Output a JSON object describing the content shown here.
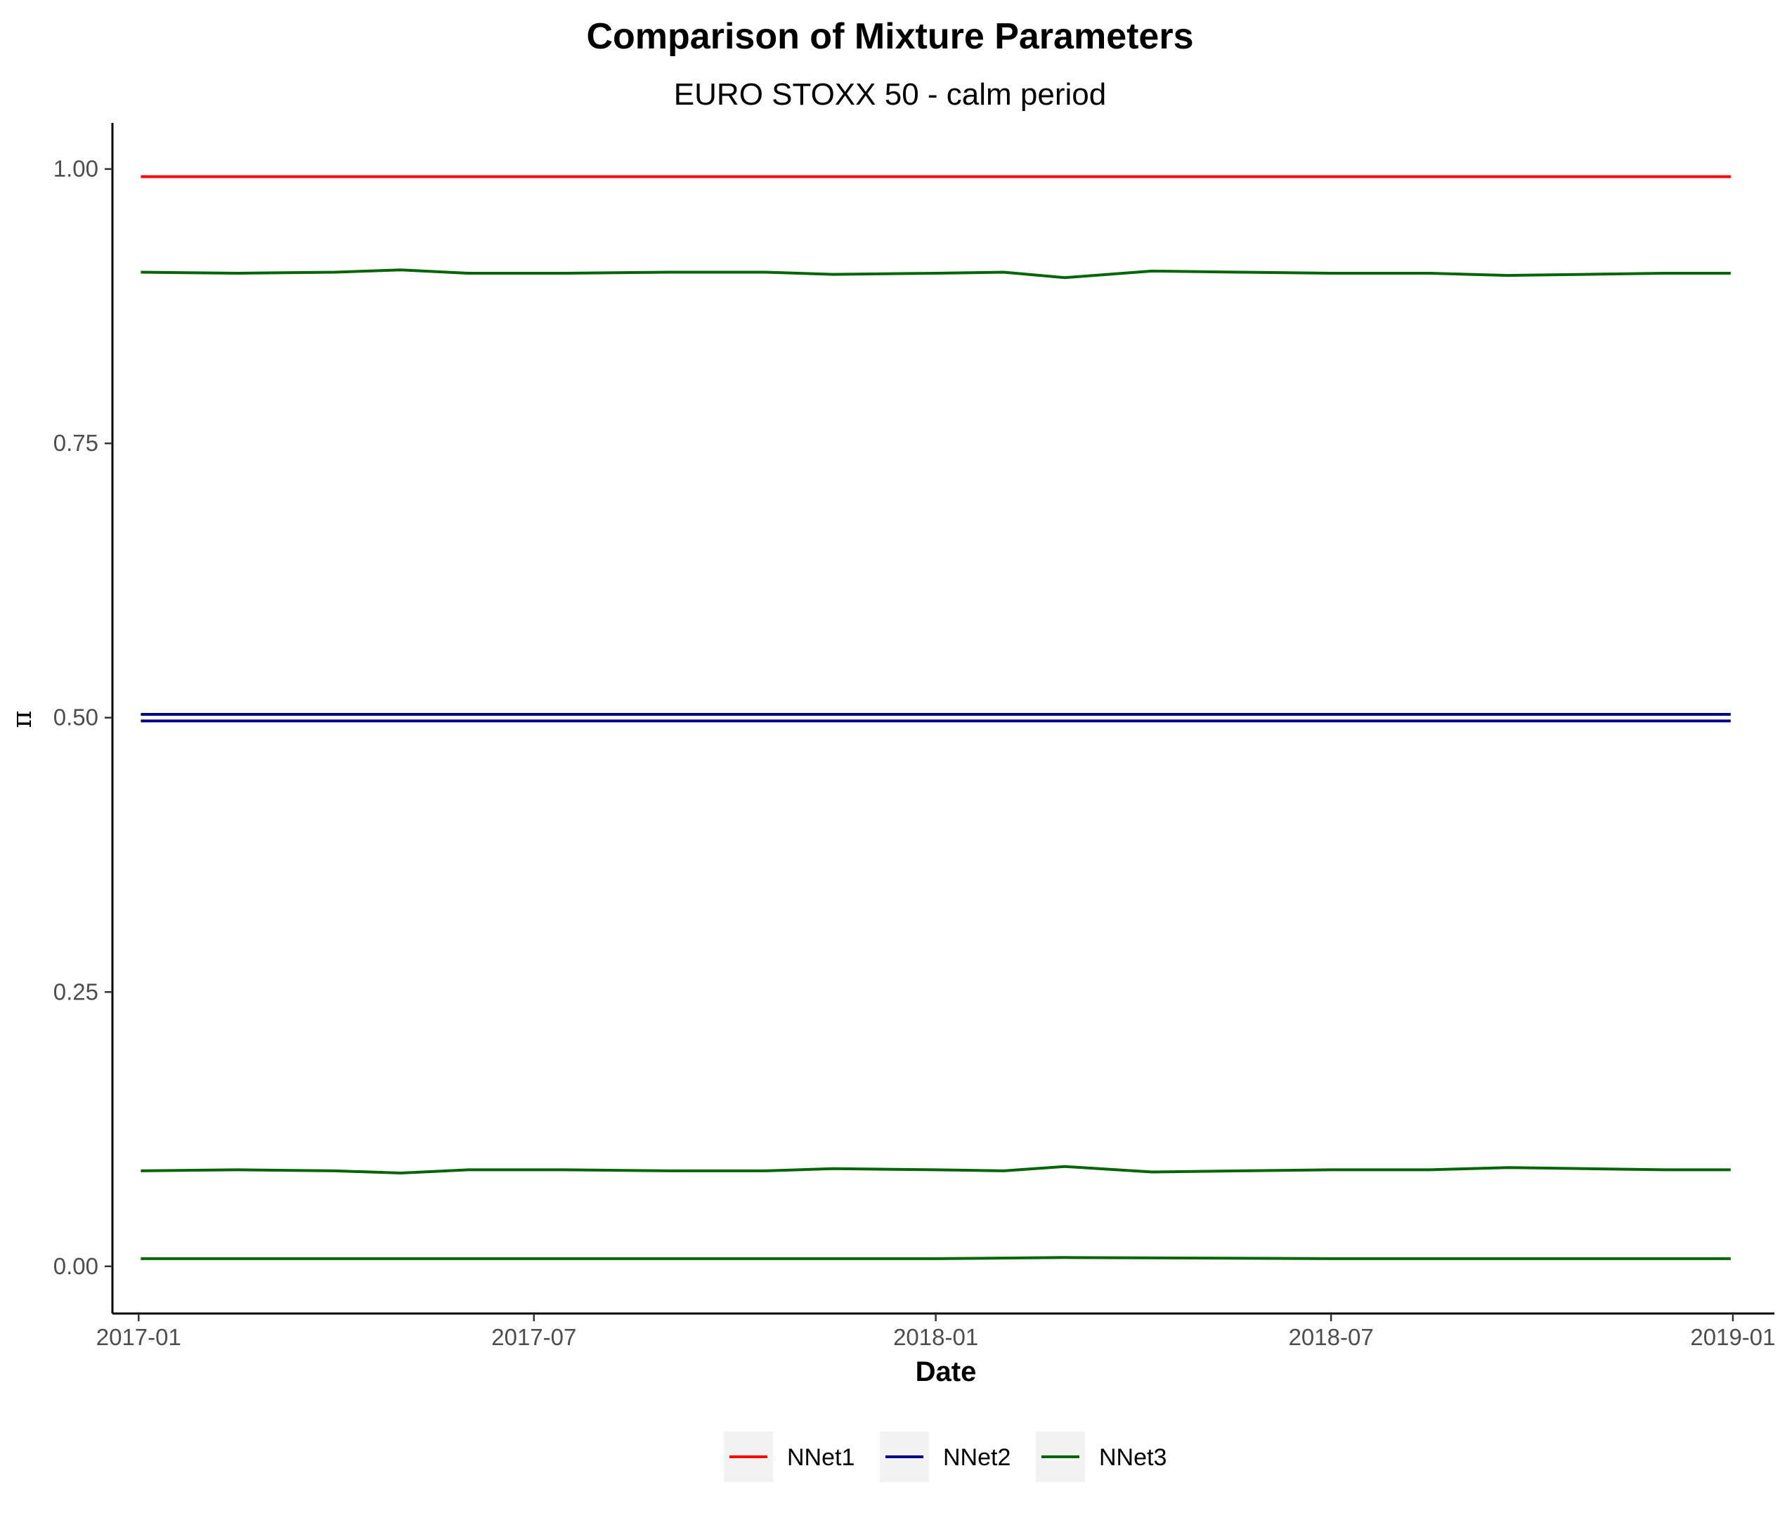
{
  "chart_data": {
    "type": "line",
    "title": "Comparison of Mixture Parameters",
    "subtitle": "EURO STOXX 50 - calm period",
    "xlabel": "Date",
    "ylabel": "π",
    "x_ticks": [
      "2017-01",
      "2017-07",
      "2018-01",
      "2018-07",
      "2019-01"
    ],
    "y_ticks": [
      "0.00",
      "0.25",
      "0.50",
      "0.75",
      "1.00"
    ],
    "xlim": [
      "2016-12-20",
      "2019-01-20"
    ],
    "ylim": [
      -0.043,
      1.042
    ],
    "grid": false,
    "legend_position": "bottom",
    "series": [
      {
        "name": "NNet1",
        "color": "#ff0000",
        "lines": [
          {
            "x": [
              "2017-01-02",
              "2017-04-01",
              "2017-07-01",
              "2017-10-01",
              "2018-01-01",
              "2018-04-01",
              "2018-07-01",
              "2018-10-01",
              "2018-12-31"
            ],
            "y": [
              0.993,
              0.993,
              0.993,
              0.993,
              0.993,
              0.993,
              0.993,
              0.993,
              0.993
            ]
          }
        ]
      },
      {
        "name": "NNet2",
        "color": "#00008b",
        "lines": [
          {
            "x": [
              "2017-01-02",
              "2017-04-01",
              "2017-07-01",
              "2017-10-01",
              "2018-01-01",
              "2018-04-01",
              "2018-07-01",
              "2018-10-01",
              "2018-12-31"
            ],
            "y": [
              0.503,
              0.503,
              0.503,
              0.503,
              0.503,
              0.503,
              0.503,
              0.503,
              0.503
            ]
          },
          {
            "x": [
              "2017-01-02",
              "2017-04-01",
              "2017-07-01",
              "2017-10-01",
              "2018-01-01",
              "2018-04-01",
              "2018-07-01",
              "2018-10-01",
              "2018-12-31"
            ],
            "y": [
              0.497,
              0.497,
              0.497,
              0.497,
              0.497,
              0.497,
              0.497,
              0.497,
              0.497
            ]
          }
        ]
      },
      {
        "name": "NNet3",
        "color": "#006400",
        "lines": [
          {
            "x": [
              "2017-01-02",
              "2017-02-15",
              "2017-04-01",
              "2017-05-01",
              "2017-06-01",
              "2017-07-15",
              "2017-09-01",
              "2017-10-15",
              "2017-11-15",
              "2018-01-01",
              "2018-02-01",
              "2018-03-01",
              "2018-04-10",
              "2018-05-20",
              "2018-07-01",
              "2018-08-15",
              "2018-09-20",
              "2018-10-25",
              "2018-12-01",
              "2018-12-31"
            ],
            "y": [
              0.906,
              0.905,
              0.906,
              0.908,
              0.905,
              0.905,
              0.906,
              0.906,
              0.904,
              0.905,
              0.906,
              0.901,
              0.907,
              0.906,
              0.905,
              0.905,
              0.903,
              0.904,
              0.905,
              0.905
            ]
          },
          {
            "x": [
              "2017-01-02",
              "2017-02-15",
              "2017-04-01",
              "2017-05-01",
              "2017-06-01",
              "2017-07-15",
              "2017-09-01",
              "2017-10-15",
              "2017-11-15",
              "2018-01-01",
              "2018-02-01",
              "2018-03-01",
              "2018-04-10",
              "2018-05-20",
              "2018-07-01",
              "2018-08-15",
              "2018-09-20",
              "2018-10-25",
              "2018-12-01",
              "2018-12-31"
            ],
            "y": [
              0.087,
              0.088,
              0.087,
              0.085,
              0.088,
              0.088,
              0.087,
              0.087,
              0.089,
              0.088,
              0.087,
              0.091,
              0.086,
              0.087,
              0.088,
              0.088,
              0.09,
              0.089,
              0.088,
              0.088
            ]
          },
          {
            "x": [
              "2017-01-02",
              "2017-04-01",
              "2017-07-01",
              "2017-10-01",
              "2018-01-01",
              "2018-03-01",
              "2018-07-01",
              "2018-10-01",
              "2018-12-31"
            ],
            "y": [
              0.007,
              0.007,
              0.007,
              0.007,
              0.007,
              0.008,
              0.007,
              0.007,
              0.007
            ]
          }
        ]
      }
    ]
  }
}
